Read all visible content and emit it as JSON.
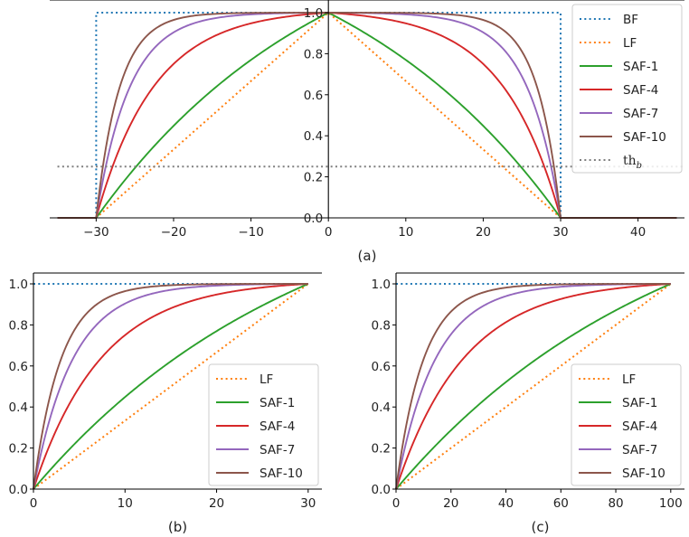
{
  "colors": {
    "BF": "#1f77b4",
    "LF": "#ff7f0e",
    "SAF-1": "#2ca02c",
    "SAF-4": "#d62728",
    "SAF-7": "#9467bd",
    "SAF-10": "#8c564b",
    "thb": "#7f7f7f"
  },
  "chart_data": [
    {
      "id": "a",
      "type": "line",
      "caption": "(a)",
      "xlim": [
        -36,
        46
      ],
      "ylim": [
        0,
        1
      ],
      "center": 0,
      "half_width": 30,
      "xticks": [
        -30,
        -20,
        -10,
        0,
        10,
        20,
        30,
        40
      ],
      "xtick_labels": [
        "−30",
        "−20",
        "−10",
        "0",
        "10",
        "20",
        "30",
        "40"
      ],
      "yticks": [
        0.0,
        0.2,
        0.4,
        0.6,
        0.8,
        1.0
      ],
      "ytick_labels": [
        "0.0",
        "0.2",
        "0.4",
        "0.6",
        "0.8",
        "1.0"
      ],
      "spines": "centered",
      "data_extent": [
        -35,
        45
      ],
      "threshold": {
        "name": "thb",
        "label": "th",
        "subscript": "b",
        "value": 0.25
      },
      "series": [
        {
          "name": "BF",
          "kind": "box",
          "style": "dotted"
        },
        {
          "name": "LF",
          "kind": "saf",
          "k": 0,
          "style": "dotted"
        },
        {
          "name": "SAF-1",
          "kind": "saf",
          "k": 1,
          "style": "solid"
        },
        {
          "name": "SAF-4",
          "kind": "saf",
          "k": 4,
          "style": "solid"
        },
        {
          "name": "SAF-7",
          "kind": "saf",
          "k": 7,
          "style": "solid"
        },
        {
          "name": "SAF-10",
          "kind": "saf",
          "k": 10,
          "style": "solid"
        }
      ],
      "legend": {
        "position": "upper right",
        "entries": [
          "BF",
          "LF",
          "SAF-1",
          "SAF-4",
          "SAF-7",
          "SAF-10",
          "thb"
        ]
      }
    },
    {
      "id": "b",
      "type": "line",
      "caption": "(b)",
      "xlim": [
        0,
        31.5
      ],
      "ylim": [
        0,
        1
      ],
      "end": 30,
      "xticks": [
        0,
        10,
        20,
        30
      ],
      "xtick_labels": [
        "0",
        "10",
        "20",
        "30"
      ],
      "yticks": [
        0.0,
        0.2,
        0.4,
        0.6,
        0.8,
        1.0
      ],
      "ytick_labels": [
        "0.0",
        "0.2",
        "0.4",
        "0.6",
        "0.8",
        "1.0"
      ],
      "series": [
        {
          "name": "BF",
          "kind": "const",
          "style": "dotted"
        },
        {
          "name": "LF",
          "kind": "ramp",
          "k": 0,
          "style": "dotted"
        },
        {
          "name": "SAF-1",
          "kind": "ramp",
          "k": 1,
          "style": "solid"
        },
        {
          "name": "SAF-4",
          "kind": "ramp",
          "k": 4,
          "style": "solid"
        },
        {
          "name": "SAF-7",
          "kind": "ramp",
          "k": 7,
          "style": "solid"
        },
        {
          "name": "SAF-10",
          "kind": "ramp",
          "k": 10,
          "style": "solid"
        }
      ],
      "legend": {
        "position": "lower right",
        "entries": [
          "LF",
          "SAF-1",
          "SAF-4",
          "SAF-7",
          "SAF-10"
        ]
      }
    },
    {
      "id": "c",
      "type": "line",
      "caption": "(c)",
      "xlim": [
        0,
        105
      ],
      "ylim": [
        0,
        1
      ],
      "end": 100,
      "xticks": [
        0,
        20,
        40,
        60,
        80,
        100
      ],
      "xtick_labels": [
        "0",
        "20",
        "40",
        "60",
        "80",
        "100"
      ],
      "yticks": [
        0.0,
        0.2,
        0.4,
        0.6,
        0.8,
        1.0
      ],
      "ytick_labels": [
        "0.0",
        "0.2",
        "0.4",
        "0.6",
        "0.8",
        "1.0"
      ],
      "series": [
        {
          "name": "BF",
          "kind": "const",
          "style": "dotted"
        },
        {
          "name": "LF",
          "kind": "ramp",
          "k": 0,
          "style": "dotted"
        },
        {
          "name": "SAF-1",
          "kind": "ramp",
          "k": 1,
          "style": "solid"
        },
        {
          "name": "SAF-4",
          "kind": "ramp",
          "k": 4,
          "style": "solid"
        },
        {
          "name": "SAF-7",
          "kind": "ramp",
          "k": 7,
          "style": "solid"
        },
        {
          "name": "SAF-10",
          "kind": "ramp",
          "k": 10,
          "style": "solid"
        }
      ],
      "legend": {
        "position": "lower right",
        "entries": [
          "LF",
          "SAF-1",
          "SAF-4",
          "SAF-7",
          "SAF-10"
        ]
      }
    }
  ]
}
